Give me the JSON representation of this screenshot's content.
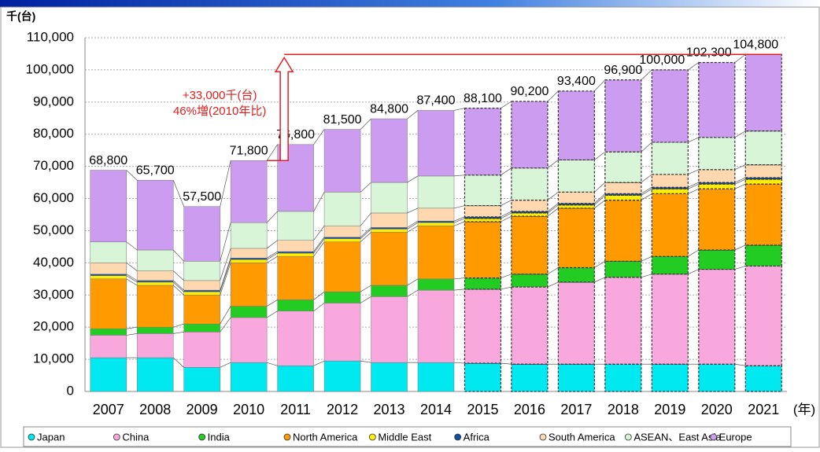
{
  "chart_data": {
    "type": "stacked_bar",
    "y_unit": "千(台)",
    "x_unit": "(年)",
    "categories": [
      "2007",
      "2008",
      "2009",
      "2010",
      "2011",
      "2012",
      "2013",
      "2014",
      "2015",
      "2016",
      "2017",
      "2018",
      "2019",
      "2020",
      "2021"
    ],
    "forecast_start": "2015",
    "series": [
      {
        "name": "Japan",
        "color": "#00e8f0",
        "values": [
          10500,
          10500,
          7500,
          9000,
          8000,
          9500,
          9000,
          9000,
          8800,
          8500,
          8500,
          8500,
          8500,
          8500,
          8000
        ]
      },
      {
        "name": "China",
        "color": "#f8a8dc",
        "values": [
          7000,
          7500,
          11000,
          14000,
          17000,
          18000,
          20500,
          22500,
          23000,
          24000,
          25500,
          27000,
          28000,
          29500,
          31000
        ]
      },
      {
        "name": "India",
        "color": "#22cc22",
        "values": [
          2000,
          2000,
          2500,
          3500,
          3500,
          3500,
          3500,
          3500,
          3500,
          4000,
          4500,
          5000,
          5500,
          6000,
          6500
        ]
      },
      {
        "name": "North America",
        "color": "#ff9a00",
        "values": [
          15500,
          13000,
          9000,
          13500,
          13500,
          15500,
          16500,
          16500,
          17500,
          18000,
          18500,
          19000,
          19500,
          19000,
          19000
        ]
      },
      {
        "name": "Middle East",
        "color": "#ffee00",
        "values": [
          1000,
          1000,
          1000,
          1000,
          1000,
          1000,
          1000,
          1000,
          1000,
          1000,
          1000,
          1500,
          1500,
          1500,
          1500
        ]
      },
      {
        "name": "Africa",
        "color": "#1050a0",
        "values": [
          500,
          500,
          500,
          500,
          500,
          500,
          500,
          500,
          500,
          500,
          500,
          500,
          500,
          500,
          500
        ]
      },
      {
        "name": "South America",
        "color": "#ffd8b0",
        "values": [
          3500,
          3000,
          3000,
          3000,
          3500,
          3500,
          4500,
          4000,
          3500,
          3500,
          3500,
          3500,
          4000,
          4000,
          4000
        ]
      },
      {
        "name": "ASEAN、East Asia",
        "color": "#d8f5d8",
        "values": [
          6500,
          6500,
          6000,
          8000,
          9000,
          10500,
          9500,
          10000,
          9500,
          10000,
          10000,
          9500,
          10000,
          10000,
          10500
        ]
      },
      {
        "name": "Europe",
        "color": "#cc9cf0",
        "values": [
          22300,
          21700,
          17000,
          19300,
          20800,
          19500,
          19800,
          20400,
          20800,
          20700,
          21400,
          22400,
          22500,
          23300,
          23800
        ]
      }
    ],
    "totals": {
      "values": [
        68800,
        65700,
        57500,
        71800,
        76800,
        81500,
        84800,
        87400,
        88100,
        90200,
        93400,
        96900,
        100000,
        102300,
        104800
      ],
      "value_labels": [
        "68,800",
        "65,700",
        "57,500",
        "71,800",
        "76,800",
        "81,500",
        "84,800",
        "87,400",
        "88,100",
        "90,200",
        "93,400",
        "96,900",
        "100,000",
        "102,300",
        "104,800"
      ]
    },
    "annotation": {
      "lines": [
        "+33,000千(台)",
        "46%増(2010年比)"
      ],
      "from": "2010",
      "to": "2021"
    },
    "ylim": [
      0,
      110000
    ],
    "yticks": [
      0,
      {
        "value": 10000,
        "label": "10,000"
      },
      {
        "value": 20000,
        "label": "20,000"
      },
      {
        "value": 30000,
        "label": "30,000"
      },
      {
        "value": 40000,
        "label": "40,000"
      },
      {
        "value": 50000,
        "label": "50,000"
      },
      {
        "value": 60000,
        "label": "60,000"
      },
      {
        "value": 70000,
        "label": "70,000"
      },
      {
        "value": 80000,
        "label": "80,000"
      },
      {
        "value": 90000,
        "label": "90,000"
      },
      {
        "value": 100000,
        "label": "100,000"
      },
      {
        "value": 110000,
        "label": "110,000"
      }
    ],
    "grid": true
  }
}
